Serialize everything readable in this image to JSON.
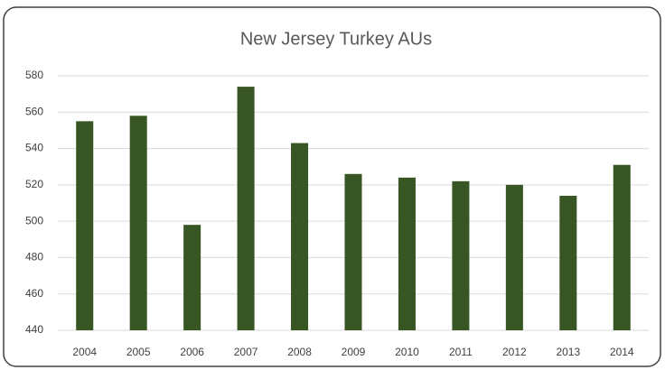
{
  "chart_data": {
    "type": "bar",
    "title": "New Jersey Turkey AUs",
    "categories": [
      "2004",
      "2005",
      "2006",
      "2007",
      "2008",
      "2009",
      "2010",
      "2011",
      "2012",
      "2013",
      "2014"
    ],
    "values": [
      555,
      558,
      498,
      574,
      543,
      526,
      524,
      522,
      520,
      514,
      531
    ],
    "color": "#375623",
    "ylim": [
      440,
      580
    ],
    "yticks": [
      440,
      460,
      480,
      500,
      520,
      540,
      560,
      580
    ],
    "grid": true
  }
}
